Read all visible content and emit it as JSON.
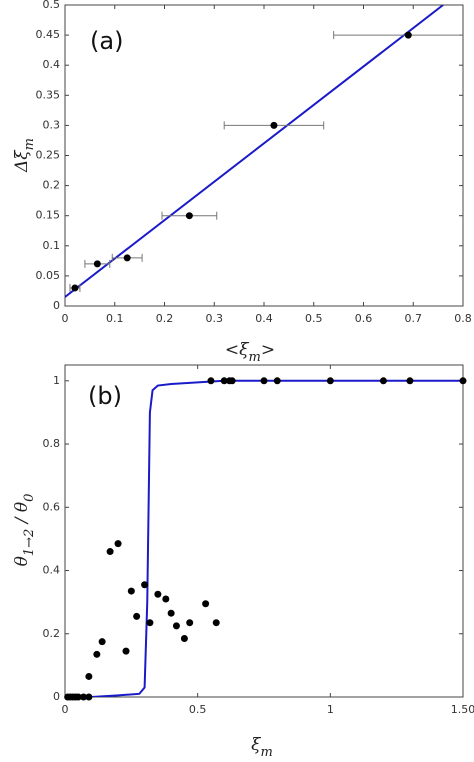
{
  "chart_data": [
    {
      "type": "scatter",
      "title": "(a)",
      "ylabel": [
        {
          "text": "Δξ",
          "sub": "m"
        }
      ],
      "xlabel": [
        {
          "text": "<ξ",
          "sub": "m"
        },
        {
          "text": ">"
        }
      ],
      "xlim": [
        0,
        0.8
      ],
      "xticks": [
        0,
        0.1,
        0.2,
        0.3,
        0.4,
        0.5,
        0.6,
        0.7,
        0.8
      ],
      "ylim": [
        0,
        0.5
      ],
      "yticks": [
        0,
        0.05,
        0.1,
        0.15,
        0.2,
        0.25,
        0.3,
        0.35,
        0.4,
        0.45,
        0.5
      ],
      "points": {
        "color": "#000000",
        "x": [
          0.02,
          0.065,
          0.125,
          0.25,
          0.42,
          0.69
        ],
        "y": [
          0.03,
          0.07,
          0.08,
          0.15,
          0.3,
          0.45
        ],
        "xerr": [
          0.01,
          0.025,
          0.03,
          0.055,
          0.1,
          0.15
        ]
      },
      "fit": {
        "color": "#1a1ac8",
        "x": [
          0,
          0.76
        ],
        "y": [
          0.015,
          0.5
        ]
      }
    },
    {
      "type": "scatter",
      "title": "(b)",
      "ylabel": [
        {
          "text": "θ",
          "sub": "1→2"
        },
        {
          "text": " / θ",
          "sub": "0"
        }
      ],
      "xlabel": [
        {
          "text": "ξ",
          "sub": "m"
        }
      ],
      "xlim": [
        0,
        1.5
      ],
      "xticks": [
        0,
        0.5,
        1,
        {
          "value": 1.5,
          "label": "1.50"
        }
      ],
      "ylim": [
        0,
        1.05
      ],
      "yticks": [
        0,
        0.2,
        0.4,
        0.6,
        0.8,
        1
      ],
      "points": {
        "color": "#000000",
        "x": [
          0.01,
          0.02,
          0.03,
          0.04,
          0.05,
          0.07,
          0.09,
          0.09,
          0.12,
          0.14,
          0.17,
          0.2,
          0.23,
          0.25,
          0.27,
          0.3,
          0.32,
          0.35,
          0.38,
          0.4,
          0.42,
          0.45,
          0.47,
          0.53,
          0.57,
          0.55,
          0.6,
          0.62,
          0.63,
          0.75,
          0.8,
          1.0,
          1.2,
          1.3,
          1.5
        ],
        "y": [
          0,
          0,
          0,
          0,
          0,
          0,
          0,
          0.065,
          0.135,
          0.175,
          0.46,
          0.485,
          0.145,
          0.335,
          0.255,
          0.355,
          0.235,
          0.325,
          0.31,
          0.265,
          0.225,
          0.185,
          0.235,
          0.295,
          0.235,
          1,
          1,
          1,
          1,
          1,
          1,
          1,
          1,
          1,
          1
        ]
      },
      "fit": {
        "color": "#1a1ac8",
        "x": [
          0,
          0.1,
          0.2,
          0.28,
          0.3,
          0.31,
          0.32,
          0.33,
          0.35,
          0.4,
          0.6,
          1.5
        ],
        "y": [
          0,
          0,
          0.005,
          0.01,
          0.03,
          0.3,
          0.9,
          0.97,
          0.985,
          0.99,
          1,
          1
        ]
      }
    }
  ]
}
